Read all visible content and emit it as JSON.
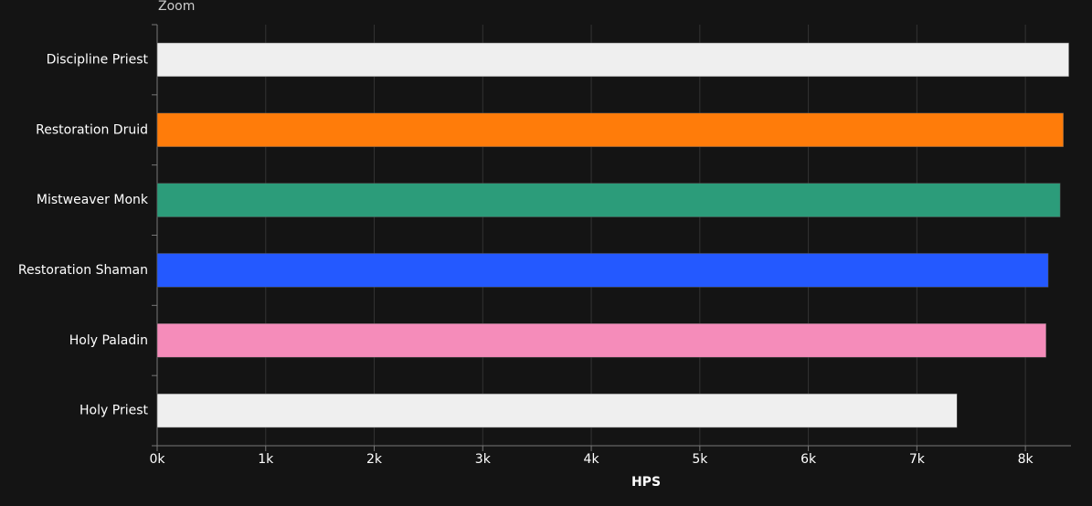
{
  "chart_data": {
    "type": "barh",
    "zoom_label": "Zoom",
    "x_label": "HPS",
    "categories": [
      "Discipline Priest",
      "Restoration Druid",
      "Mistweaver Monk",
      "Restoration Shaman",
      "Holy Paladin",
      "Holy Priest"
    ],
    "values": [
      8400,
      8350,
      8320,
      8210,
      8190,
      7370
    ],
    "colors": [
      "#efefef",
      "#ff7c0a",
      "#2c9c7a",
      "#2459ff",
      "#f58cba",
      "#efefef"
    ],
    "xlim": [
      0,
      8420
    ],
    "xticks": [
      {
        "value": 0,
        "label": "0k"
      },
      {
        "value": 1000,
        "label": "1k"
      },
      {
        "value": 2000,
        "label": "2k"
      },
      {
        "value": 3000,
        "label": "3k"
      },
      {
        "value": 4000,
        "label": "4k"
      },
      {
        "value": 5000,
        "label": "5k"
      },
      {
        "value": 6000,
        "label": "6k"
      },
      {
        "value": 7000,
        "label": "7k"
      },
      {
        "value": 8000,
        "label": "8k"
      }
    ],
    "grid": true
  }
}
